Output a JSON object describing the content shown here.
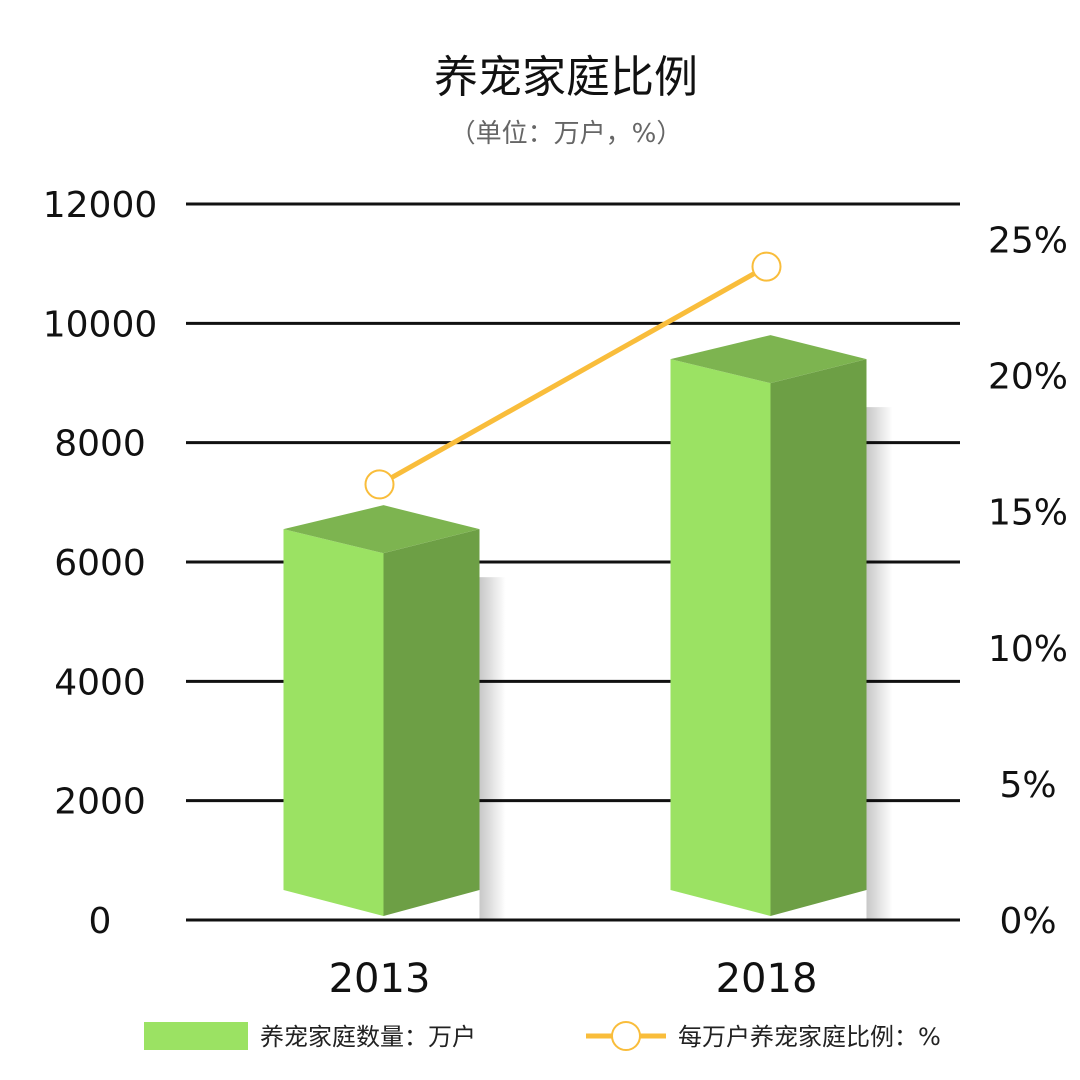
{
  "chart_data": {
    "type": "bar",
    "title": "养宠家庭比例",
    "subtitle": "（单位：万户，%）",
    "categories": [
      "2013",
      "2018"
    ],
    "series": [
      {
        "name": "养宠家庭数量：万户",
        "type": "bar",
        "axis": "left",
        "values": [
          6550,
          9400
        ],
        "color": "#9be263"
      },
      {
        "name": "每万户养宠家庭比例：%",
        "type": "line",
        "axis": "right",
        "values": [
          16,
          24
        ],
        "color": "#f9bd3b"
      }
    ],
    "y_left": {
      "ticks": [
        "0",
        "2000",
        "4000",
        "6000",
        "8000",
        "10000",
        "12000"
      ],
      "ylim": [
        0,
        12000
      ]
    },
    "y_right": {
      "ticks": [
        "0%",
        "5%",
        "10%",
        "15%",
        "20%",
        "25%"
      ],
      "ylim": [
        0,
        26.3
      ]
    },
    "grid": true,
    "legend": "bottom"
  }
}
